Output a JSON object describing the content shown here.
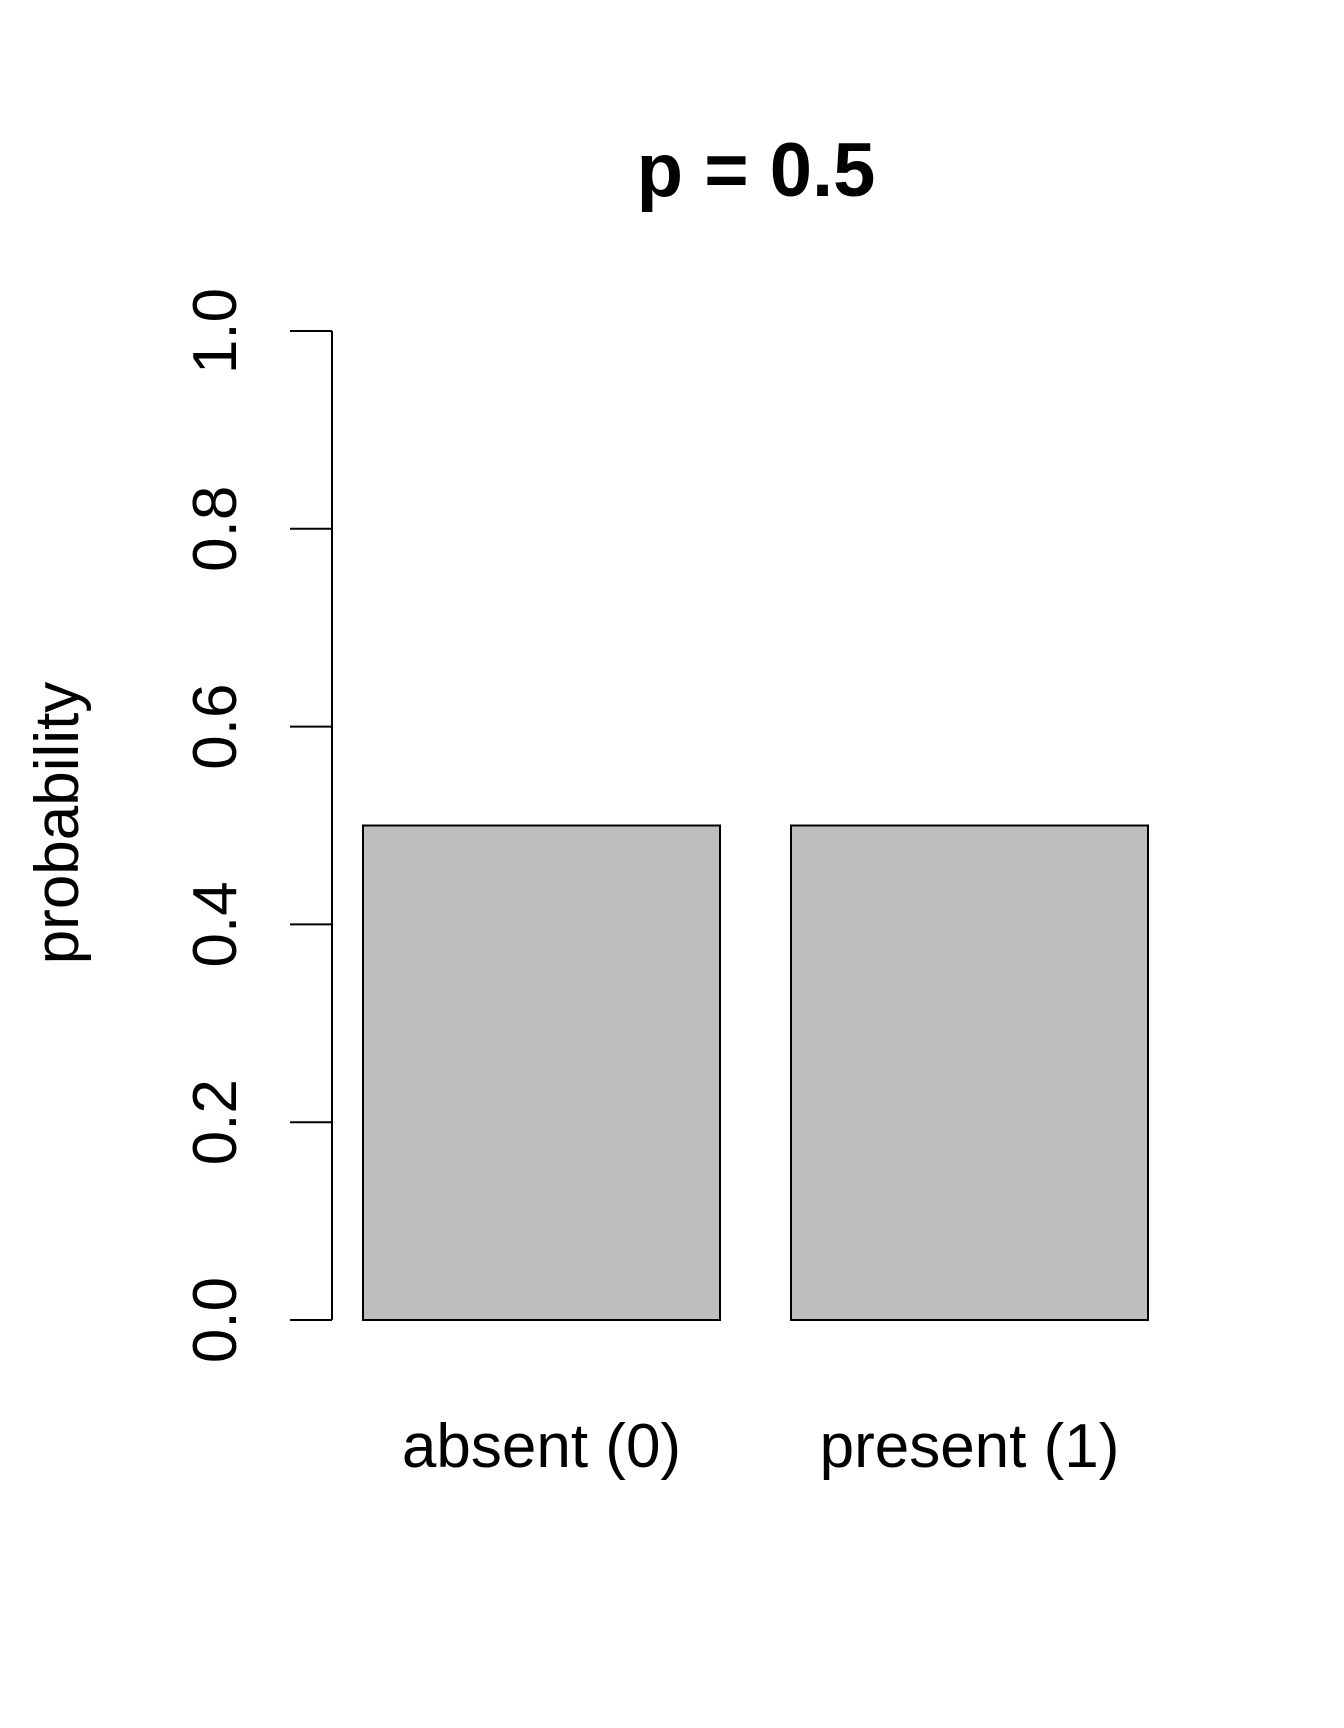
{
  "chart_data": {
    "type": "bar",
    "title": "p = 0.5",
    "xlabel": "",
    "ylabel": "probability",
    "categories": [
      "absent (0)",
      "present (1)"
    ],
    "values": [
      0.5,
      0.5
    ],
    "ylim": [
      0,
      1
    ],
    "yticks": [
      0.0,
      0.2,
      0.4,
      0.6,
      0.8,
      1.0
    ],
    "ytick_labels": [
      "0.0",
      "0.2",
      "0.4",
      "0.6",
      "0.8",
      "1.0"
    ],
    "bar_color": "#bebebe",
    "bar_border_color": "#000000",
    "grid": false,
    "legend": "none"
  }
}
